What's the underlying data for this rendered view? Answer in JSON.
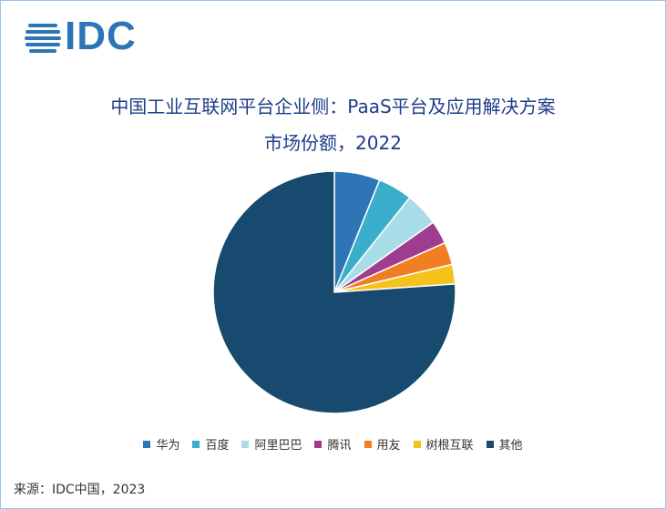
{
  "logo": "IDC",
  "chart_data": {
    "type": "pie",
    "title": [
      "中国工业互联网平台企业侧：PaaS平台及应用解决方案",
      "市场份额，2022"
    ],
    "categories": [
      "华为",
      "百度",
      "阿里巴巴",
      "腾讯",
      "用友",
      "树根互联",
      "其他"
    ],
    "values": [
      6.1,
      4.6,
      4.5,
      3.1,
      3.0,
      2.6,
      76.1
    ],
    "colors": [
      "#2e75b6",
      "#3aaecb",
      "#a8dce6",
      "#9e3d8e",
      "#f07f24",
      "#f5c21b",
      "#174a6e"
    ],
    "legend": "bottom"
  },
  "source": "来源：IDC中国，2023"
}
